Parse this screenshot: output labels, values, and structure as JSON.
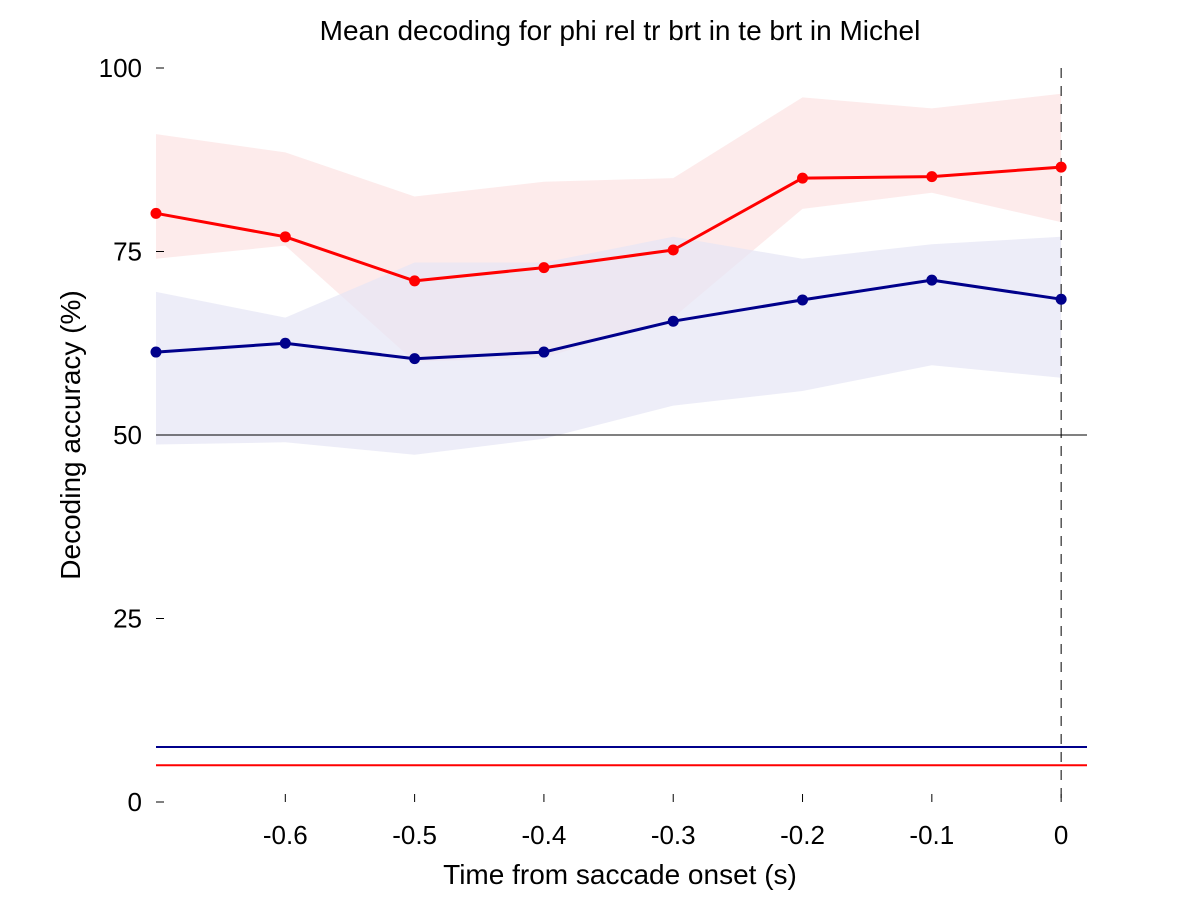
{
  "chart_data": {
    "type": "line",
    "title": "Mean decoding for phi rel tr brt in te brt in  Michel",
    "xlabel": "Time from saccade onset (s)",
    "ylabel": "Decoding accuracy (%)",
    "xlim": [
      -0.7,
      0.02
    ],
    "ylim": [
      0,
      100
    ],
    "x_ticks": [
      -0.6,
      -0.5,
      -0.4,
      -0.3,
      -0.2,
      -0.1,
      0
    ],
    "x_tick_labels": [
      "-0.6",
      "-0.5",
      "-0.4",
      "-0.3",
      "-0.2",
      "-0.1",
      "0"
    ],
    "y_ticks": [
      0,
      25,
      50,
      75,
      100
    ],
    "y_tick_labels": [
      "0",
      "25",
      "50",
      "75",
      "100"
    ],
    "grid": false,
    "x": [
      -0.7,
      -0.6,
      -0.5,
      -0.4,
      -0.3,
      -0.2,
      -0.1,
      0
    ],
    "series": [
      {
        "color": "#ff0000",
        "band_color": "#fde8e8",
        "values": [
          80.2,
          77.0,
          71.0,
          72.8,
          75.2,
          85.0,
          85.2,
          86.5
        ],
        "upper": [
          91.0,
          88.5,
          82.5,
          84.5,
          85.0,
          96.0,
          94.5,
          96.5
        ],
        "lower": [
          74.0,
          75.8,
          60.0,
          60.5,
          66.0,
          80.8,
          83.0,
          79.0
        ],
        "chance_level": 5.0
      },
      {
        "color": "#00008b",
        "band_color": "#e6e6f5",
        "values": [
          61.3,
          62.5,
          60.4,
          61.3,
          65.5,
          68.4,
          71.1,
          68.5
        ],
        "upper": [
          69.5,
          66.0,
          73.5,
          73.5,
          77.0,
          74.0,
          76.0,
          77.0
        ],
        "lower": [
          48.7,
          49.0,
          47.3,
          49.5,
          54.0,
          56.0,
          59.5,
          57.8
        ],
        "chance_level": 7.5
      }
    ],
    "reference_lines": {
      "chance_50": 50,
      "saccade_onset_x": 0
    }
  }
}
